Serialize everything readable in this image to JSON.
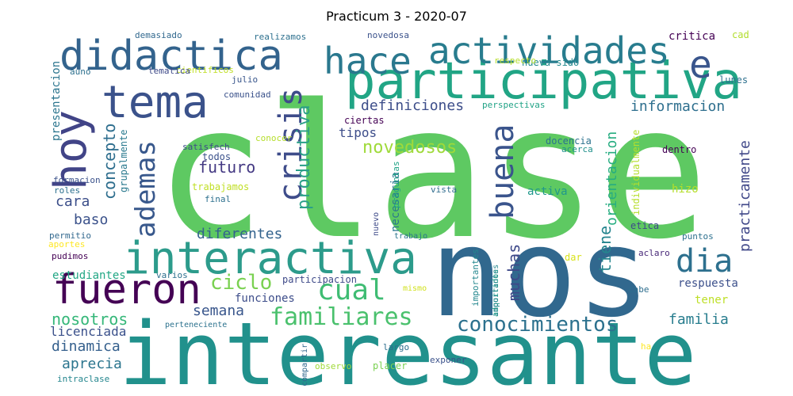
{
  "title": "Practicum 3 - 2020-07",
  "words": [
    {
      "text": "clase",
      "color": "#5ec962"
    },
    {
      "text": "nos",
      "color": "#31688e"
    },
    {
      "text": "interesante",
      "color": "#21918c"
    },
    {
      "text": "participativa",
      "color": "#21a585"
    },
    {
      "text": "interactiva",
      "color": "#2c9b8b"
    },
    {
      "text": "fueron",
      "color": "#440154"
    },
    {
      "text": "didactica",
      "color": "#33638d"
    },
    {
      "text": "tema",
      "color": "#3b528b"
    },
    {
      "text": "hace",
      "color": "#2a788e"
    },
    {
      "text": "actividades",
      "color": "#287c8e"
    },
    {
      "text": "hoy",
      "color": "#414487"
    },
    {
      "text": "e",
      "color": "#39558c"
    },
    {
      "text": "crisis",
      "color": "#3e4c8a"
    },
    {
      "text": "ademas",
      "color": "#38588c"
    },
    {
      "text": "buena",
      "color": "#3a548c"
    },
    {
      "text": "dia",
      "color": "#2d708e"
    },
    {
      "text": "cual",
      "color": "#3fbc73"
    },
    {
      "text": "familiares",
      "color": "#4ac16d"
    },
    {
      "text": "conocimientos",
      "color": "#2c718e"
    },
    {
      "text": "ciclo",
      "color": "#7ad151"
    },
    {
      "text": "concepto",
      "color": "#2e6e8e"
    },
    {
      "text": "productiva",
      "color": "#2a9f88"
    },
    {
      "text": "novedosos",
      "color": "#9fda3a"
    },
    {
      "text": "futuro",
      "color": "#443983"
    },
    {
      "text": "muchas",
      "color": "#3e4989"
    },
    {
      "text": "tiene",
      "color": "#25858e"
    },
    {
      "text": "orientacion",
      "color": "#27ad81"
    },
    {
      "text": "practicamente",
      "color": "#3f4788"
    },
    {
      "text": "definiciones",
      "color": "#3d4e8a"
    },
    {
      "text": "informacion",
      "color": "#2e6f8e"
    },
    {
      "text": "familia",
      "color": "#287d8e"
    },
    {
      "text": "nosotros",
      "color": "#35b779"
    },
    {
      "text": "semana",
      "color": "#39568c"
    },
    {
      "text": "diferentes",
      "color": "#33638d"
    },
    {
      "text": "cara",
      "color": "#3c4f8a"
    },
    {
      "text": "baso",
      "color": "#3b528b"
    },
    {
      "text": "dinamica",
      "color": "#35608d"
    },
    {
      "text": "aprecia",
      "color": "#2b758e"
    },
    {
      "text": "licenciada",
      "color": "#3b518b"
    },
    {
      "text": "presentacion",
      "color": "#2b758e"
    },
    {
      "text": "grupalmente",
      "color": "#29798e"
    },
    {
      "text": "tipos",
      "color": "#3d4d8a"
    },
    {
      "text": "ciertas",
      "color": "#440154"
    },
    {
      "text": "participacion",
      "color": "#3e4a89"
    },
    {
      "text": "funciones",
      "color": "#3d4d8a"
    },
    {
      "text": "estudiantes",
      "color": "#22a785"
    },
    {
      "text": "necesaria",
      "color": "#2a778e"
    },
    {
      "text": "trabajamos",
      "color": "#c0df25"
    },
    {
      "text": "activa",
      "color": "#1f988b"
    },
    {
      "text": "hizo",
      "color": "#b5de2b"
    },
    {
      "text": "tener",
      "color": "#bddf26"
    },
    {
      "text": "respuesta",
      "color": "#3c508b"
    },
    {
      "text": "critica",
      "color": "#440154"
    },
    {
      "text": "lunes",
      "color": "#2d708e"
    },
    {
      "text": "cad",
      "color": "#b2dd2d"
    },
    {
      "text": "nueva sido",
      "color": "#23898e"
    },
    {
      "text": "respecto",
      "color": "#b5de2b"
    },
    {
      "text": "perspectivas",
      "color": "#20a386"
    },
    {
      "text": "docencia",
      "color": "#2c728e"
    },
    {
      "text": "acerca",
      "color": "#21918c"
    },
    {
      "text": "individualmente",
      "color": "#b5de2b"
    },
    {
      "text": "dentro",
      "color": "#440154"
    },
    {
      "text": "etica",
      "color": "#3e4a89"
    },
    {
      "text": "puntos",
      "color": "#2d708e"
    },
    {
      "text": "aclaro",
      "color": "#482878"
    },
    {
      "text": "dar",
      "color": "#d8e219"
    },
    {
      "text": "adquiridos",
      "color": "#1fa088"
    },
    {
      "text": "importantes",
      "color": "#24878e"
    },
    {
      "text": "cabe",
      "color": "#2e6e8e"
    },
    {
      "text": "ha",
      "color": "#fde725"
    },
    {
      "text": "exponer",
      "color": "#3b528b"
    },
    {
      "text": "placer",
      "color": "#7ad151"
    },
    {
      "text": "observo",
      "color": "#a0da39"
    },
    {
      "text": "compartir",
      "color": "#31688e"
    },
    {
      "text": "largo",
      "color": "#2e6e8e"
    },
    {
      "text": "intraclase",
      "color": "#24868e"
    },
    {
      "text": "perteneciente",
      "color": "#2c728e"
    },
    {
      "text": "mismo",
      "color": "#d0e11c"
    },
    {
      "text": "importantes",
      "color": "#24878e"
    },
    {
      "text": "trabajo",
      "color": "#2b758e"
    },
    {
      "text": "nuevo",
      "color": "#3e4a89"
    },
    {
      "text": "vista",
      "color": "#2f6c8e"
    },
    {
      "text": "preguntas",
      "color": "#20a386"
    },
    {
      "text": "final",
      "color": "#2d708e"
    },
    {
      "text": "todos",
      "color": "#3b528b"
    },
    {
      "text": "satisfech",
      "color": "#3e4a89"
    },
    {
      "text": "conocer",
      "color": "#b5de2b"
    },
    {
      "text": "roles",
      "color": "#2d708e"
    },
    {
      "text": "formacion",
      "color": "#3b528b"
    },
    {
      "text": "permitio",
      "color": "#31688e"
    },
    {
      "text": "aportes",
      "color": "#fde725"
    },
    {
      "text": "pudimos",
      "color": "#440154"
    },
    {
      "text": "varios",
      "color": "#2d708e"
    },
    {
      "text": "comunidad",
      "color": "#3b528b"
    },
    {
      "text": "julio",
      "color": "#39568c"
    },
    {
      "text": "cientificos",
      "color": "#c0df25"
    },
    {
      "text": "tematica",
      "color": "#3e4a89"
    },
    {
      "text": "auno",
      "color": "#2d708e"
    },
    {
      "text": "demasiado",
      "color": "#31688e"
    },
    {
      "text": "realizamos",
      "color": "#2d708e"
    },
    {
      "text": "novedosa",
      "color": "#3b528b"
    }
  ]
}
